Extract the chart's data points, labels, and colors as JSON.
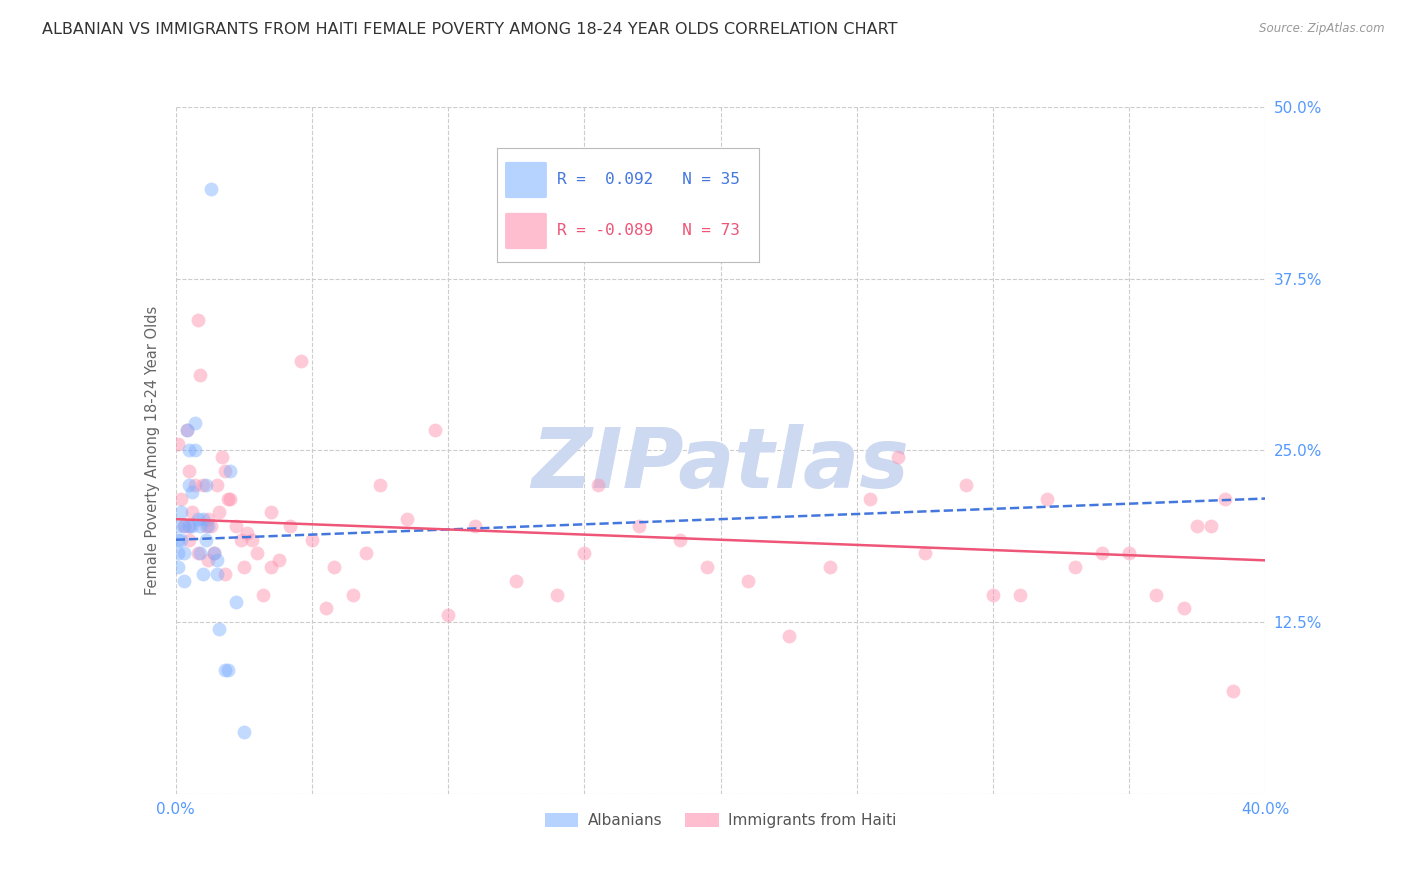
{
  "title": "ALBANIAN VS IMMIGRANTS FROM HAITI FEMALE POVERTY AMONG 18-24 YEAR OLDS CORRELATION CHART",
  "source": "Source: ZipAtlas.com",
  "ylabel": "Female Poverty Among 18-24 Year Olds",
  "xlim": [
    0.0,
    0.4
  ],
  "ylim": [
    0.0,
    0.5
  ],
  "xticks": [
    0.0,
    0.05,
    0.1,
    0.15,
    0.2,
    0.25,
    0.3,
    0.35,
    0.4
  ],
  "yticks": [
    0.0,
    0.125,
    0.25,
    0.375,
    0.5
  ],
  "ytick_labels": [
    "",
    "12.5%",
    "25.0%",
    "37.5%",
    "50.0%"
  ],
  "albanian_color": "#7aadff",
  "haiti_color": "#ff8aaa",
  "trend_albanian_color": "#4477dd",
  "trend_haiti_color": "#ee5577",
  "grid_color": "#cccccc",
  "background_color": "#ffffff",
  "watermark_text": "ZIPatlas",
  "watermark_color": "#ccd9f0",
  "axis_label_color": "#5599ff",
  "title_color": "#333333",
  "title_fontsize": 11.5,
  "ylabel_fontsize": 10.5,
  "tick_fontsize": 11,
  "marker_size": 100,
  "marker_alpha": 0.45,
  "albanian_x": [
    0.001,
    0.001,
    0.001,
    0.001,
    0.002,
    0.002,
    0.003,
    0.003,
    0.003,
    0.004,
    0.005,
    0.005,
    0.005,
    0.006,
    0.006,
    0.007,
    0.007,
    0.008,
    0.009,
    0.009,
    0.01,
    0.01,
    0.011,
    0.011,
    0.012,
    0.013,
    0.014,
    0.015,
    0.015,
    0.016,
    0.018,
    0.019,
    0.02,
    0.022,
    0.025
  ],
  "albanian_y": [
    0.195,
    0.185,
    0.175,
    0.165,
    0.205,
    0.185,
    0.195,
    0.175,
    0.155,
    0.265,
    0.25,
    0.225,
    0.195,
    0.22,
    0.195,
    0.27,
    0.25,
    0.2,
    0.195,
    0.175,
    0.2,
    0.16,
    0.225,
    0.185,
    0.195,
    0.44,
    0.175,
    0.17,
    0.16,
    0.12,
    0.09,
    0.09,
    0.235,
    0.14,
    0.045
  ],
  "haiti_x": [
    0.001,
    0.002,
    0.003,
    0.004,
    0.005,
    0.005,
    0.006,
    0.007,
    0.008,
    0.009,
    0.01,
    0.011,
    0.012,
    0.013,
    0.014,
    0.015,
    0.016,
    0.017,
    0.018,
    0.019,
    0.02,
    0.022,
    0.024,
    0.026,
    0.028,
    0.03,
    0.032,
    0.035,
    0.038,
    0.042,
    0.046,
    0.05,
    0.058,
    0.065,
    0.075,
    0.085,
    0.095,
    0.11,
    0.125,
    0.14,
    0.155,
    0.17,
    0.185,
    0.195,
    0.21,
    0.225,
    0.24,
    0.255,
    0.265,
    0.275,
    0.29,
    0.3,
    0.31,
    0.32,
    0.33,
    0.34,
    0.35,
    0.36,
    0.37,
    0.375,
    0.38,
    0.385,
    0.388,
    0.005,
    0.008,
    0.012,
    0.018,
    0.025,
    0.035,
    0.055,
    0.07,
    0.1,
    0.15
  ],
  "haiti_y": [
    0.255,
    0.215,
    0.195,
    0.265,
    0.235,
    0.195,
    0.205,
    0.225,
    0.345,
    0.305,
    0.225,
    0.195,
    0.2,
    0.195,
    0.175,
    0.225,
    0.205,
    0.245,
    0.235,
    0.215,
    0.215,
    0.195,
    0.185,
    0.19,
    0.185,
    0.175,
    0.145,
    0.165,
    0.17,
    0.195,
    0.315,
    0.185,
    0.165,
    0.145,
    0.225,
    0.2,
    0.265,
    0.195,
    0.155,
    0.145,
    0.225,
    0.195,
    0.185,
    0.165,
    0.155,
    0.115,
    0.165,
    0.215,
    0.245,
    0.175,
    0.225,
    0.145,
    0.145,
    0.215,
    0.165,
    0.175,
    0.175,
    0.145,
    0.135,
    0.195,
    0.195,
    0.215,
    0.075,
    0.185,
    0.175,
    0.17,
    0.16,
    0.165,
    0.205,
    0.135,
    0.175,
    0.13,
    0.175
  ],
  "legend_r_alb": "R =  0.092",
  "legend_n_alb": "N = 35",
  "legend_r_hai": "R = -0.089",
  "legend_n_hai": "N = 73",
  "trend_alb_x0": 0.0,
  "trend_alb_x1": 0.4,
  "trend_alb_y0": 0.185,
  "trend_alb_y1": 0.215,
  "trend_hai_x0": 0.0,
  "trend_hai_x1": 0.4,
  "trend_hai_y0": 0.2,
  "trend_hai_y1": 0.17
}
